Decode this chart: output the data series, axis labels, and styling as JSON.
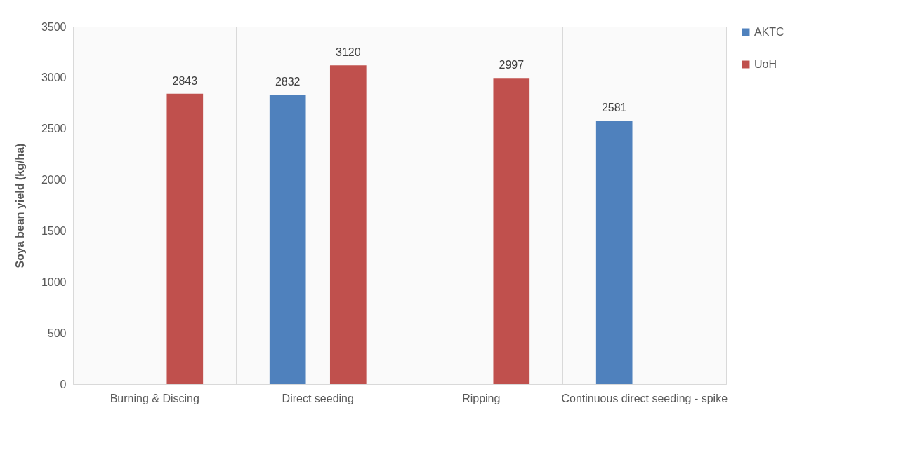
{
  "chart_data": {
    "type": "bar",
    "ylabel": "Soya bean yield (kg/ha)",
    "categories": [
      "Burning & Discing",
      "Direct seeding",
      "Ripping",
      "Continuous direct seeding - spike"
    ],
    "series": [
      {
        "name": "AKTC",
        "color": "#4f81bd",
        "values": [
          null,
          2832,
          null,
          2581
        ]
      },
      {
        "name": "UoH",
        "color": "#c0504d",
        "values": [
          2843,
          3120,
          2997,
          null
        ]
      }
    ],
    "ylim": [
      0,
      3500
    ],
    "yticks": [
      0,
      500,
      1000,
      1500,
      2000,
      2500,
      3000,
      3500
    ],
    "grid": "x",
    "legend": "right",
    "data_labels": true
  }
}
